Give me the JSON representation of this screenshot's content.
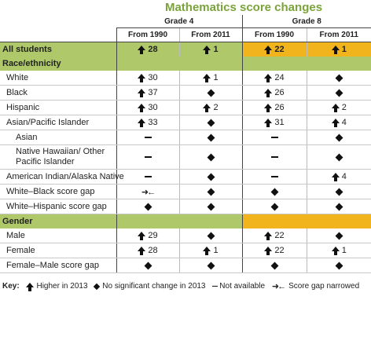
{
  "title": "Mathematics score changes",
  "grades": [
    "Grade 4",
    "Grade 8"
  ],
  "columns": [
    "From 1990",
    "From 2011",
    "From 1990",
    "From 2011"
  ],
  "all_students": {
    "label": "All students",
    "cells": [
      {
        "type": "up",
        "value": "28"
      },
      {
        "type": "up",
        "value": "1"
      },
      {
        "type": "up",
        "value": "22"
      },
      {
        "type": "up",
        "value": "1"
      }
    ]
  },
  "section_race": "Race/ethnicity",
  "rows_race": [
    {
      "label": "White",
      "cells": [
        {
          "type": "up",
          "value": "30"
        },
        {
          "type": "up",
          "value": "1"
        },
        {
          "type": "up",
          "value": "24"
        },
        {
          "type": "diamond",
          "value": ""
        }
      ]
    },
    {
      "label": "Black",
      "cells": [
        {
          "type": "up",
          "value": "37"
        },
        {
          "type": "diamond",
          "value": ""
        },
        {
          "type": "up",
          "value": "26"
        },
        {
          "type": "diamond",
          "value": ""
        }
      ]
    },
    {
      "label": "Hispanic",
      "cells": [
        {
          "type": "up",
          "value": "30"
        },
        {
          "type": "up",
          "value": "2"
        },
        {
          "type": "up",
          "value": "26"
        },
        {
          "type": "up",
          "value": "2"
        }
      ]
    },
    {
      "label": "Asian/Pacific Islander",
      "cells": [
        {
          "type": "up",
          "value": "33"
        },
        {
          "type": "diamond",
          "value": ""
        },
        {
          "type": "up",
          "value": "31"
        },
        {
          "type": "up",
          "value": "4"
        }
      ]
    },
    {
      "label": "Asian",
      "sub": true,
      "cells": [
        {
          "type": "dash",
          "value": ""
        },
        {
          "type": "diamond",
          "value": ""
        },
        {
          "type": "dash",
          "value": ""
        },
        {
          "type": "diamond",
          "value": ""
        }
      ]
    },
    {
      "label": "Native Hawaiian/ Other Pacific Islander",
      "sub": true,
      "tall": true,
      "cells": [
        {
          "type": "dash",
          "value": ""
        },
        {
          "type": "diamond",
          "value": ""
        },
        {
          "type": "dash",
          "value": ""
        },
        {
          "type": "diamond",
          "value": ""
        }
      ]
    },
    {
      "label": "American Indian/Alaska Native",
      "cells": [
        {
          "type": "dash",
          "value": ""
        },
        {
          "type": "diamond",
          "value": ""
        },
        {
          "type": "dash",
          "value": ""
        },
        {
          "type": "up",
          "value": "4"
        }
      ]
    },
    {
      "label": "White–Black score gap",
      "cells": [
        {
          "type": "gap",
          "value": ""
        },
        {
          "type": "diamond",
          "value": ""
        },
        {
          "type": "diamond",
          "value": ""
        },
        {
          "type": "diamond",
          "value": ""
        }
      ]
    },
    {
      "label": "White–Hispanic score gap",
      "cells": [
        {
          "type": "diamond",
          "value": ""
        },
        {
          "type": "diamond",
          "value": ""
        },
        {
          "type": "diamond",
          "value": ""
        },
        {
          "type": "diamond",
          "value": ""
        }
      ]
    }
  ],
  "section_gender": "Gender",
  "rows_gender": [
    {
      "label": "Male",
      "cells": [
        {
          "type": "up",
          "value": "29"
        },
        {
          "type": "diamond",
          "value": ""
        },
        {
          "type": "up",
          "value": "22"
        },
        {
          "type": "diamond",
          "value": ""
        }
      ]
    },
    {
      "label": "Female",
      "cells": [
        {
          "type": "up",
          "value": "28"
        },
        {
          "type": "up",
          "value": "1"
        },
        {
          "type": "up",
          "value": "22"
        },
        {
          "type": "up",
          "value": "1"
        }
      ]
    },
    {
      "label": "Female–Male score gap",
      "cells": [
        {
          "type": "diamond",
          "value": ""
        },
        {
          "type": "diamond",
          "value": ""
        },
        {
          "type": "diamond",
          "value": ""
        },
        {
          "type": "diamond",
          "value": ""
        }
      ]
    }
  ],
  "key": {
    "label": "Key:",
    "higher": "Higher in 2013",
    "no_change": "No significant change in 2013",
    "not_available": "Not available",
    "gap_narrowed": "Score gap narrowed"
  },
  "colors": {
    "grade4_accent": "#afc86a",
    "grade8_accent": "#f2b41c",
    "title": "#7aa339"
  }
}
